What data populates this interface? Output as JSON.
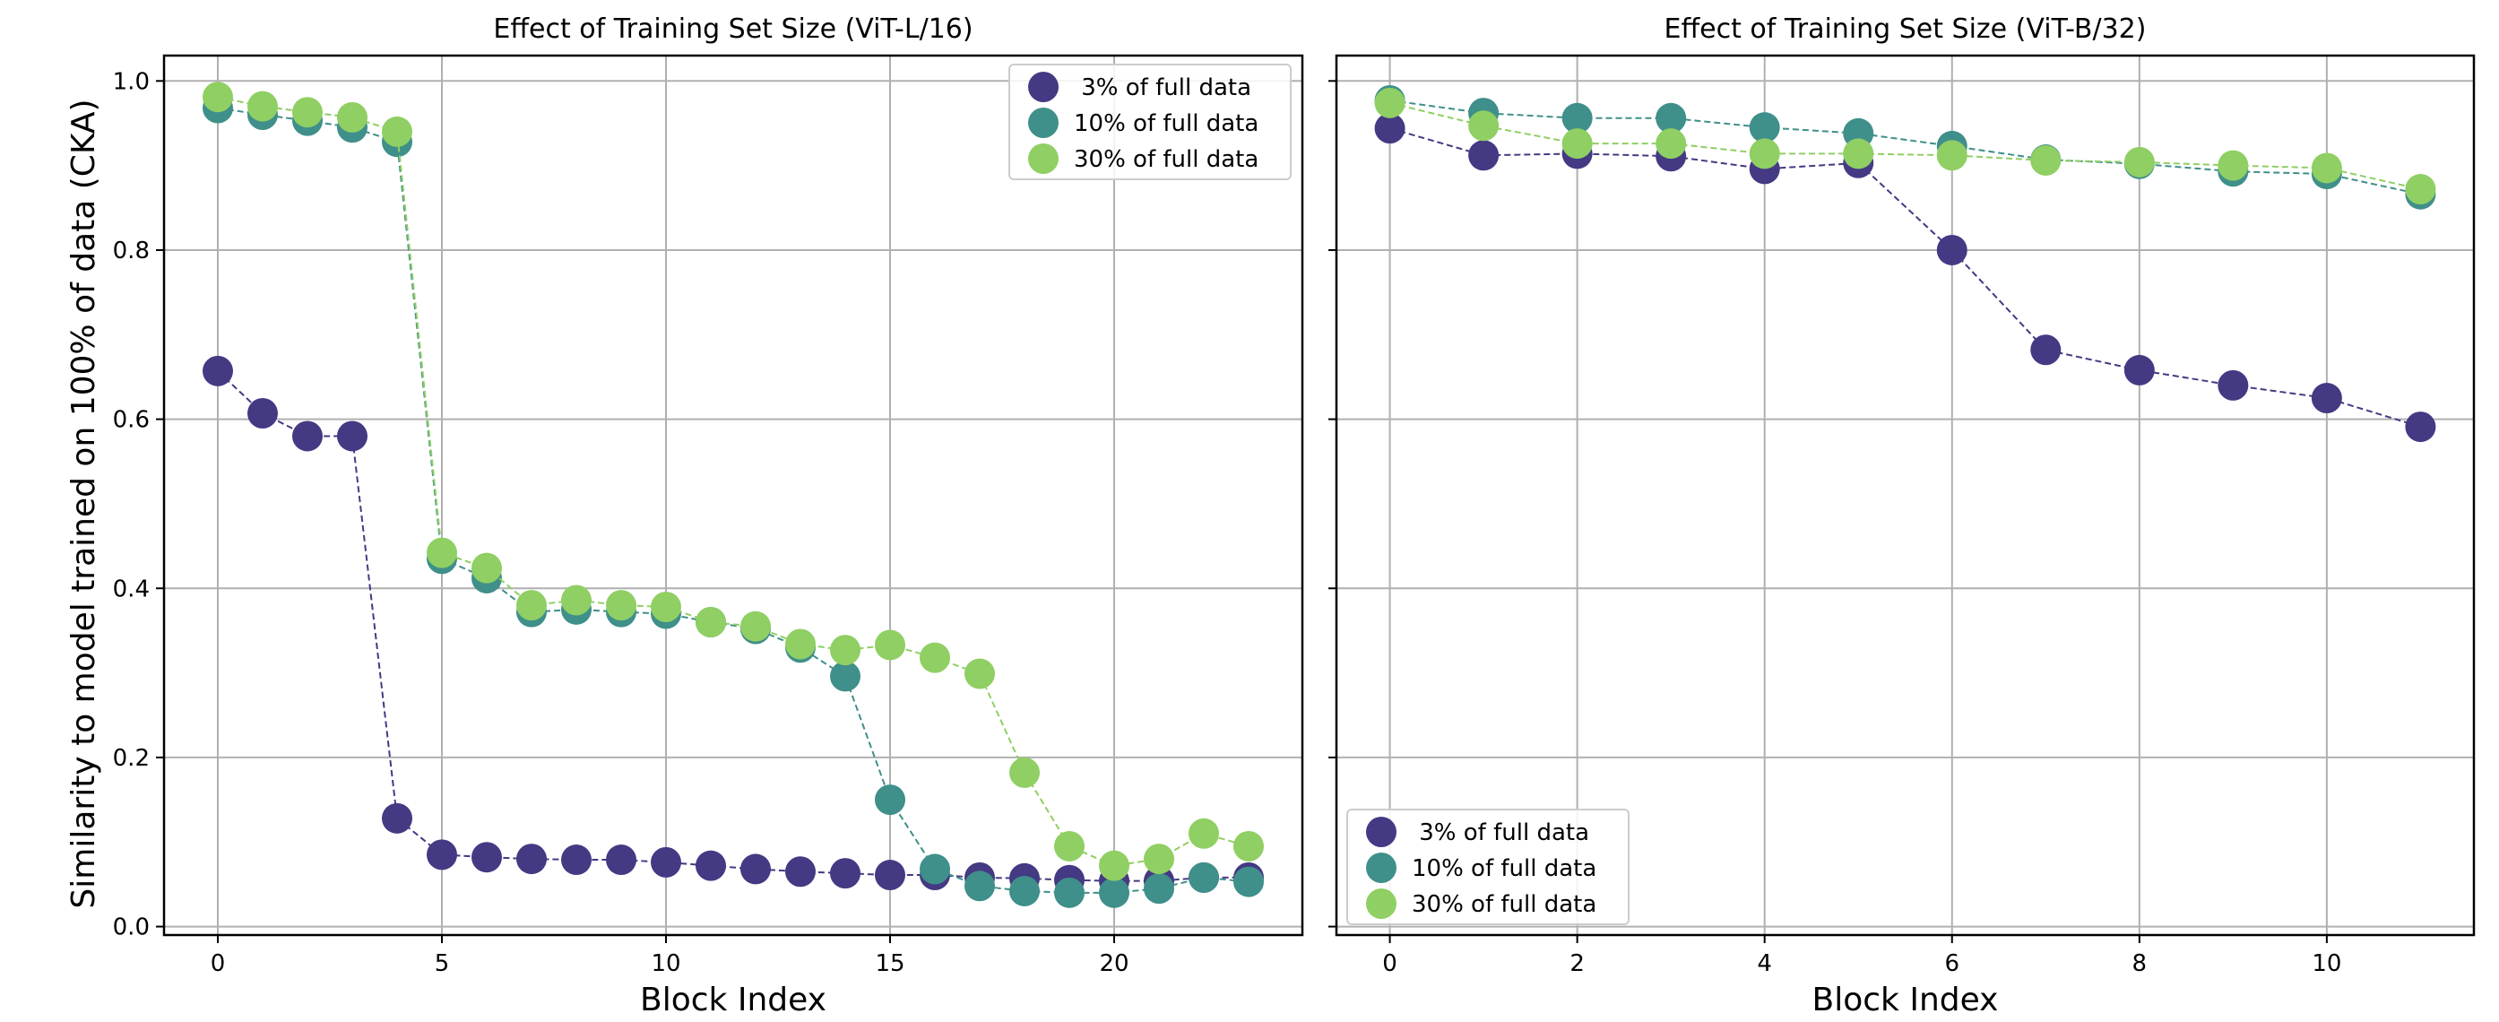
{
  "figure": {
    "ylabel": "Similarity to model trained on 100% of data (CKA)"
  },
  "chart_data": [
    {
      "type": "line",
      "title": "Effect of Training Set Size (ViT-L/16)",
      "xlabel": "Block Index",
      "ylabel": "Similarity to model trained on 100% of data (CKA)",
      "xlim": [
        -1.2,
        24.2
      ],
      "ylim": [
        -0.01,
        1.03
      ],
      "xticks": [
        0,
        5,
        10,
        15,
        20
      ],
      "yticks": [
        0.0,
        0.2,
        0.4,
        0.6,
        0.8,
        1.0
      ],
      "xtick_labels": [
        "0",
        "5",
        "10",
        "15",
        "20"
      ],
      "ytick_labels": [
        "0.0",
        "0.2",
        "0.4",
        "0.6",
        "0.8",
        "1.0"
      ],
      "grid": true,
      "legend_position": "top-right",
      "x": [
        0,
        1,
        2,
        3,
        4,
        5,
        6,
        7,
        8,
        9,
        10,
        11,
        12,
        13,
        14,
        15,
        16,
        17,
        18,
        19,
        20,
        21,
        22,
        23
      ],
      "series": [
        {
          "name": " 3% of full data",
          "color": "#443983",
          "values": [
            0.657,
            0.607,
            0.58,
            0.58,
            0.128,
            0.085,
            0.082,
            0.08,
            0.079,
            0.079,
            0.076,
            0.072,
            0.068,
            0.065,
            0.063,
            0.061,
            0.061,
            0.058,
            0.057,
            0.055,
            0.054,
            0.054,
            0.058,
            0.058
          ]
        },
        {
          "name": "10% of full data",
          "color": "#3f8f8a",
          "values": [
            0.968,
            0.96,
            0.953,
            0.945,
            0.928,
            0.435,
            0.412,
            0.372,
            0.375,
            0.372,
            0.37,
            0.36,
            0.352,
            0.33,
            0.296,
            0.15,
            0.068,
            0.048,
            0.042,
            0.04,
            0.04,
            0.045,
            0.058,
            0.053
          ]
        },
        {
          "name": "30% of full data",
          "color": "#8fcf63",
          "values": [
            0.981,
            0.97,
            0.963,
            0.957,
            0.94,
            0.442,
            0.424,
            0.38,
            0.386,
            0.38,
            0.378,
            0.36,
            0.355,
            0.334,
            0.327,
            0.333,
            0.318,
            0.299,
            0.182,
            0.095,
            0.072,
            0.08,
            0.11,
            0.095
          ]
        }
      ]
    },
    {
      "type": "line",
      "title": "Effect of Training Set Size (ViT-B/32)",
      "xlabel": "Block Index",
      "ylabel": "",
      "xlim": [
        -0.57,
        11.57
      ],
      "ylim": [
        -0.01,
        1.03
      ],
      "xticks": [
        0,
        2,
        4,
        6,
        8,
        10
      ],
      "yticks": [
        0.0,
        0.2,
        0.4,
        0.6,
        0.8,
        1.0
      ],
      "xtick_labels": [
        "0",
        "2",
        "4",
        "6",
        "8",
        "10"
      ],
      "grid": true,
      "legend_position": "bottom-left",
      "x": [
        0,
        1,
        2,
        3,
        4,
        5,
        6,
        7,
        8,
        9,
        10,
        11
      ],
      "series": [
        {
          "name": " 3% of full data",
          "color": "#443983",
          "values": [
            0.944,
            0.912,
            0.914,
            0.911,
            0.896,
            0.903,
            0.8,
            0.682,
            0.658,
            0.64,
            0.625,
            0.591
          ]
        },
        {
          "name": "10% of full data",
          "color": "#3f8f8a",
          "values": [
            0.977,
            0.962,
            0.956,
            0.956,
            0.945,
            0.938,
            0.923,
            0.907,
            0.902,
            0.893,
            0.89,
            0.866
          ]
        },
        {
          "name": "30% of full data",
          "color": "#8fcf63",
          "values": [
            0.974,
            0.947,
            0.926,
            0.926,
            0.914,
            0.914,
            0.912,
            0.906,
            0.904,
            0.9,
            0.897,
            0.872
          ]
        }
      ]
    }
  ]
}
